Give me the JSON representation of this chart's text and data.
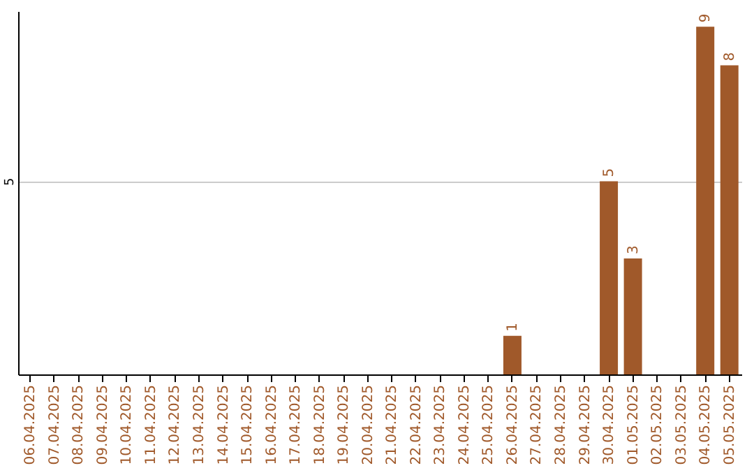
{
  "chart_data": {
    "type": "bar",
    "categories": [
      "06.04.2025",
      "07.04.2025",
      "08.04.2025",
      "09.04.2025",
      "10.04.2025",
      "11.04.2025",
      "12.04.2025",
      "13.04.2025",
      "14.04.2025",
      "15.04.2025",
      "16.04.2025",
      "17.04.2025",
      "18.04.2025",
      "19.04.2025",
      "20.04.2025",
      "21.04.2025",
      "22.04.2025",
      "23.04.2025",
      "24.04.2025",
      "25.04.2025",
      "26.04.2025",
      "27.04.2025",
      "28.04.2025",
      "29.04.2025",
      "30.04.2025",
      "01.05.2025",
      "02.05.2025",
      "03.05.2025",
      "04.05.2025",
      "05.05.2025"
    ],
    "values": [
      null,
      null,
      null,
      null,
      null,
      null,
      null,
      null,
      null,
      null,
      null,
      null,
      null,
      null,
      null,
      null,
      null,
      null,
      null,
      null,
      1,
      null,
      null,
      null,
      5,
      3,
      null,
      null,
      9,
      8
    ],
    "data_labels": true,
    "color": "#a0592a",
    "ylim": [
      0,
      9.4
    ],
    "yticks": [
      5
    ],
    "grid": "y"
  }
}
